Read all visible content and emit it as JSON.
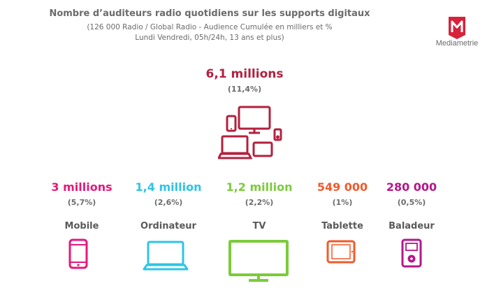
{
  "header": {
    "title": "Nombre d’auditeurs radio quotidiens sur les supports digitaux",
    "subtitle_line1": "(126 000 Radio / Global Radio - Audience Cumulée en milliers et %",
    "subtitle_line2": "Lundi Vendredi, 05h/24h, 13 ans et plus)"
  },
  "logo": {
    "letter": "M",
    "text": "Mediametrie",
    "color": "#d6223a"
  },
  "total": {
    "value": "6,1 millions",
    "percent": "(11,4%)",
    "color": "#b2213e"
  },
  "devices": [
    {
      "id": "mobile",
      "value": "3 millions",
      "percent": "(5,7%)",
      "label": "Mobile",
      "color": "#e4197b",
      "icon": "smartphone-icon"
    },
    {
      "id": "ordinateur",
      "value": "1,4 million",
      "percent": "(2,6%)",
      "label": "Ordinateur",
      "color": "#2ec4e6",
      "icon": "laptop-icon"
    },
    {
      "id": "tv",
      "value": "1,2 million",
      "percent": "(2,2%)",
      "label": "TV",
      "color": "#7ccb3b",
      "icon": "tv-icon"
    },
    {
      "id": "tablette",
      "value": "549 000",
      "percent": "(1%)",
      "label": "Tablette",
      "color": "#f15a2b",
      "icon": "tablet-icon"
    },
    {
      "id": "baladeur",
      "value": "280 000",
      "percent": "(0,5%)",
      "label": "Baladeur",
      "color": "#b5178a",
      "icon": "music-player-icon"
    }
  ]
}
